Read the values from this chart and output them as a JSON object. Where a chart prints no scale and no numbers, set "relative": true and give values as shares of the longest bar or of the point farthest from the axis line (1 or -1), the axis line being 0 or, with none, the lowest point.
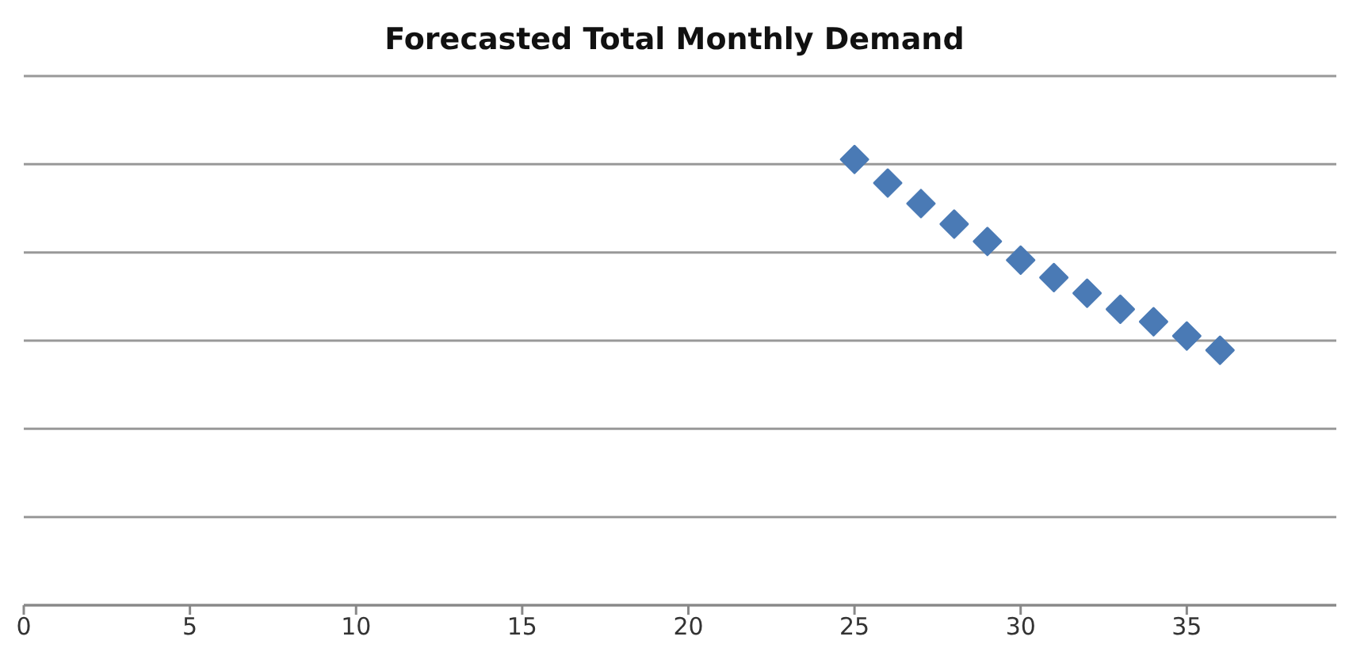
{
  "chart_data": {
    "type": "scatter",
    "title": "Forecasted Total Monthly Demand",
    "relative": true,
    "x": [
      25,
      26,
      27,
      28,
      29,
      30,
      31,
      32,
      33,
      34,
      35,
      36
    ],
    "values": [
      1,
      0.947,
      0.901,
      0.855,
      0.816,
      0.774,
      0.735,
      0.7,
      0.664,
      0.636,
      0.604,
      0.572
    ],
    "color": "#4a7ab5",
    "marker": "diamond",
    "grid": "y",
    "xlim": [
      0,
      39.5
    ],
    "xticks": [
      0,
      5,
      10,
      15,
      20,
      25,
      30,
      35
    ]
  }
}
